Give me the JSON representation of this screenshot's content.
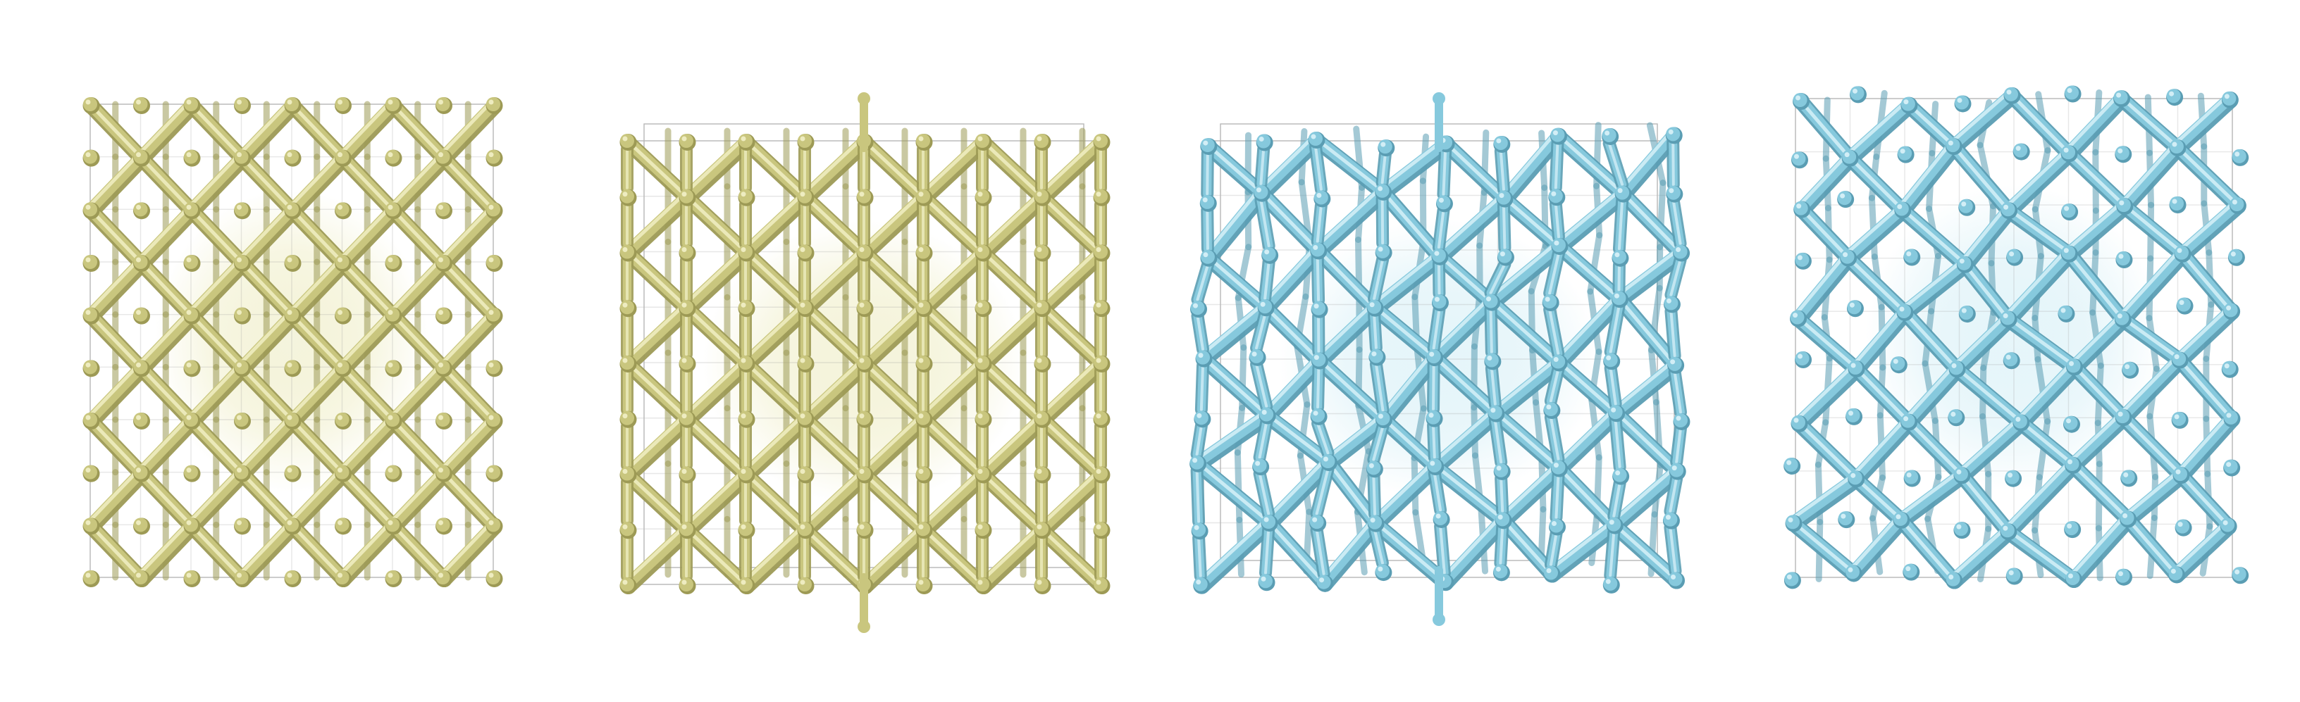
{
  "figure": {
    "panels": [
      {
        "id": "lattice-a",
        "color": "#c9c67e",
        "shade": "#9d9a55",
        "highlight": "#eeecc0",
        "core": "#f4f3dc",
        "view": "front",
        "distorted": false
      },
      {
        "id": "lattice-b",
        "color": "#c9c67e",
        "shade": "#9d9a55",
        "highlight": "#eeecc0",
        "core": "#f4f3dc",
        "view": "oblique",
        "distorted": false
      },
      {
        "id": "lattice-c",
        "color": "#86c9dd",
        "shade": "#5a9db3",
        "highlight": "#d2eef6",
        "core": "#e6f5fa",
        "view": "oblique",
        "distorted": true
      },
      {
        "id": "lattice-d",
        "color": "#86c9dd",
        "shade": "#5a9db3",
        "highlight": "#d2eef6",
        "core": "#e6f5fa",
        "view": "front",
        "distorted": true
      }
    ],
    "box_edge_color": "#9a9a9a",
    "background": "#ffffff"
  }
}
